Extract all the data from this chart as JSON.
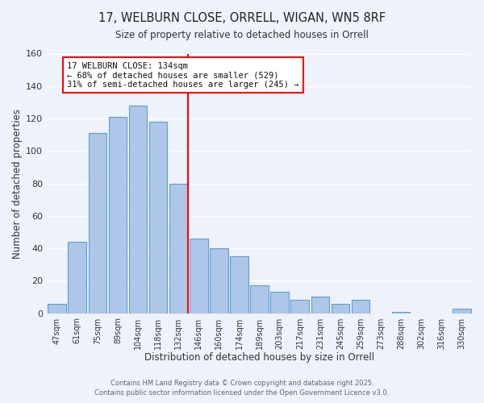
{
  "title": "17, WELBURN CLOSE, ORRELL, WIGAN, WN5 8RF",
  "subtitle": "Size of property relative to detached houses in Orrell",
  "xlabel": "Distribution of detached houses by size in Orrell",
  "ylabel": "Number of detached properties",
  "bar_labels": [
    "47sqm",
    "61sqm",
    "75sqm",
    "89sqm",
    "104sqm",
    "118sqm",
    "132sqm",
    "146sqm",
    "160sqm",
    "174sqm",
    "189sqm",
    "203sqm",
    "217sqm",
    "231sqm",
    "245sqm",
    "259sqm",
    "273sqm",
    "288sqm",
    "302sqm",
    "316sqm",
    "330sqm"
  ],
  "bar_values": [
    6,
    44,
    111,
    121,
    128,
    118,
    80,
    46,
    40,
    35,
    17,
    13,
    8,
    10,
    6,
    8,
    0,
    1,
    0,
    0,
    3
  ],
  "bar_color": "#aec6e8",
  "bar_edge_color": "#5a9fd4",
  "vline_color": "red",
  "vline_index": 6,
  "annotation_title": "17 WELBURN CLOSE: 134sqm",
  "annotation_line1": "← 68% of detached houses are smaller (529)",
  "annotation_line2": "31% of semi-detached houses are larger (245) →",
  "annotation_box_color": "white",
  "annotation_box_edge": "red",
  "ylim": [
    0,
    160
  ],
  "yticks": [
    0,
    20,
    40,
    60,
    80,
    100,
    120,
    140,
    160
  ],
  "footer1": "Contains HM Land Registry data © Crown copyright and database right 2025.",
  "footer2": "Contains public sector information licensed under the Open Government Licence v3.0.",
  "background_color": "#eef2fb",
  "grid_color": "white"
}
